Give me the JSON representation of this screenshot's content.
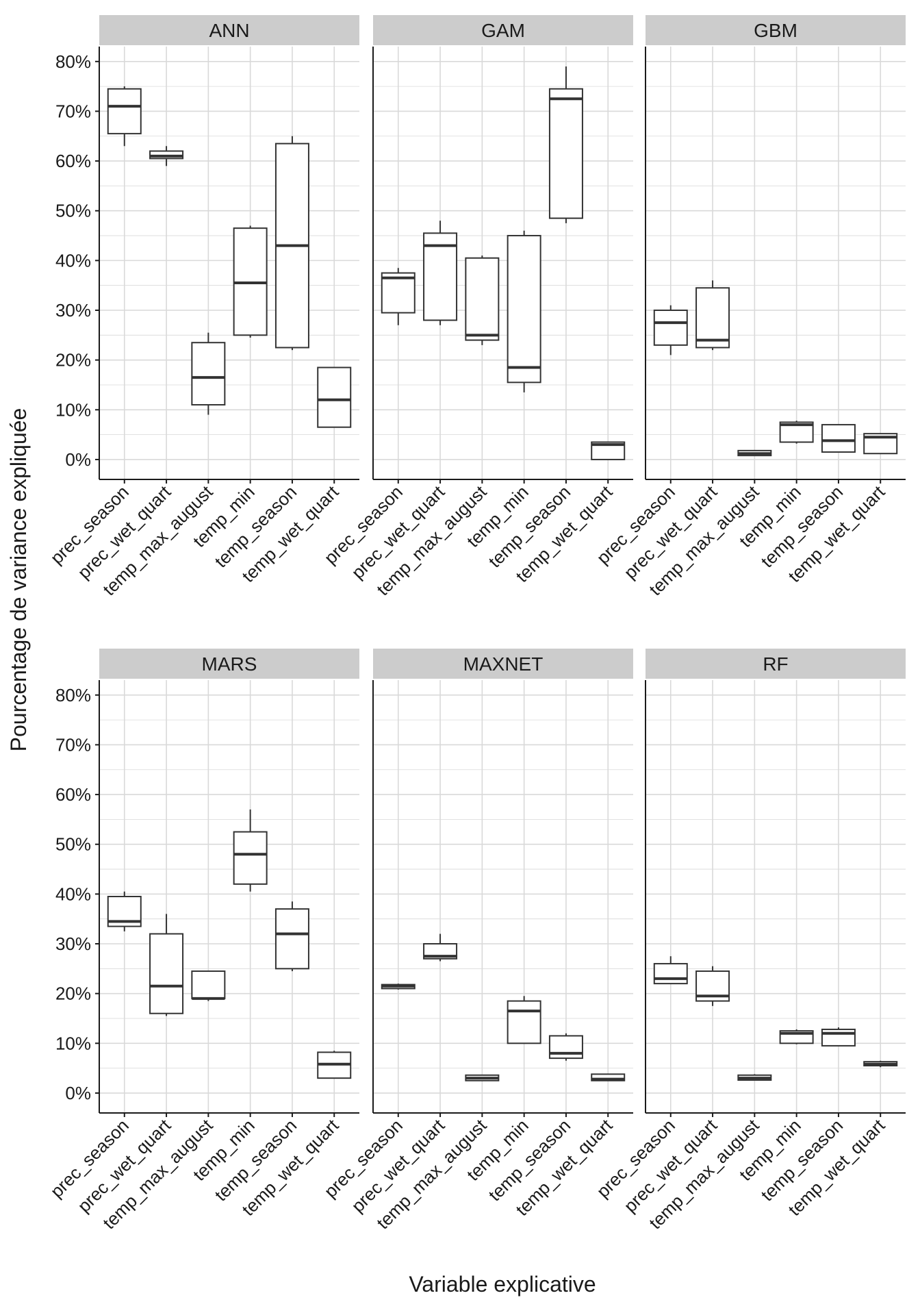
{
  "colors": {
    "strip_bg": "#cccccc",
    "grid": "#d9d9d9",
    "box_stroke": "#333333",
    "text": "#1a1a1a"
  },
  "chart_data": {
    "type": "boxplot",
    "title": "",
    "xlabel": "Variable explicative",
    "ylabel": "Pourcentage de variance expliquée",
    "ylim": [
      -4,
      83
    ],
    "yticks": [
      0,
      10,
      20,
      30,
      40,
      50,
      60,
      70,
      80
    ],
    "ytick_labels": [
      "0%",
      "10%",
      "20%",
      "30%",
      "40%",
      "50%",
      "60%",
      "70%",
      "80%"
    ],
    "grid": true,
    "categories": [
      "prec_season",
      "prec_wet_quart",
      "temp_max_august",
      "temp_min",
      "temp_season",
      "temp_wet_quart"
    ],
    "facets": [
      {
        "name": "ANN",
        "boxes": [
          {
            "min": 63,
            "q1": 65.5,
            "median": 71,
            "q3": 74.5,
            "max": 75
          },
          {
            "min": 59,
            "q1": 60.5,
            "median": 61,
            "q3": 62,
            "max": 63
          },
          {
            "min": 9,
            "q1": 11,
            "median": 16.5,
            "q3": 23.5,
            "max": 25.5
          },
          {
            "min": 24.5,
            "q1": 25,
            "median": 35.5,
            "q3": 46.5,
            "max": 47
          },
          {
            "min": 22,
            "q1": 22.5,
            "median": 43,
            "q3": 63.5,
            "max": 65
          },
          {
            "min": 6.5,
            "q1": 6.5,
            "median": 12,
            "q3": 18.5,
            "max": 18.5
          }
        ]
      },
      {
        "name": "GAM",
        "boxes": [
          {
            "min": 27,
            "q1": 29.5,
            "median": 36.5,
            "q3": 37.5,
            "max": 38.5
          },
          {
            "min": 27,
            "q1": 28,
            "median": 43,
            "q3": 45.5,
            "max": 48
          },
          {
            "min": 23,
            "q1": 24,
            "median": 25,
            "q3": 40.5,
            "max": 41
          },
          {
            "min": 13.5,
            "q1": 15.5,
            "median": 18.5,
            "q3": 45,
            "max": 46
          },
          {
            "min": 47.5,
            "q1": 48.5,
            "median": 72.5,
            "q3": 74.5,
            "max": 79
          },
          {
            "min": 0,
            "q1": 0,
            "median": 3,
            "q3": 3.5,
            "max": 3.5
          }
        ]
      },
      {
        "name": "GBM",
        "boxes": [
          {
            "min": 21,
            "q1": 23,
            "median": 27.5,
            "q3": 30,
            "max": 31
          },
          {
            "min": 22,
            "q1": 22.5,
            "median": 24,
            "q3": 34.5,
            "max": 36
          },
          {
            "min": 0.7,
            "q1": 0.8,
            "median": 1.2,
            "q3": 1.8,
            "max": 1.9
          },
          {
            "min": 3.2,
            "q1": 3.5,
            "median": 7,
            "q3": 7.5,
            "max": 7.8
          },
          {
            "min": 1.5,
            "q1": 1.5,
            "median": 3.8,
            "q3": 7,
            "max": 7
          },
          {
            "min": 1.2,
            "q1": 1.2,
            "median": 4.5,
            "q3": 5.2,
            "max": 5.2
          }
        ]
      },
      {
        "name": "MARS",
        "boxes": [
          {
            "min": 32.5,
            "q1": 33.5,
            "median": 34.5,
            "q3": 39.5,
            "max": 40.5
          },
          {
            "min": 15.5,
            "q1": 16,
            "median": 21.5,
            "q3": 32,
            "max": 36
          },
          {
            "min": 18.5,
            "q1": 19,
            "median": 19,
            "q3": 24.5,
            "max": 24.5
          },
          {
            "min": 40.5,
            "q1": 42,
            "median": 48,
            "q3": 52.5,
            "max": 57
          },
          {
            "min": 24.5,
            "q1": 25,
            "median": 32,
            "q3": 37,
            "max": 38.5
          },
          {
            "min": 3,
            "q1": 3,
            "median": 5.8,
            "q3": 8.2,
            "max": 8.5
          }
        ]
      },
      {
        "name": "MAXNET",
        "boxes": [
          {
            "min": 20.8,
            "q1": 21,
            "median": 21.5,
            "q3": 21.8,
            "max": 22
          },
          {
            "min": 26.5,
            "q1": 27,
            "median": 27.5,
            "q3": 30,
            "max": 32
          },
          {
            "min": 2.5,
            "q1": 2.5,
            "median": 3,
            "q3": 3.6,
            "max": 3.6
          },
          {
            "min": 10,
            "q1": 10,
            "median": 16.5,
            "q3": 18.5,
            "max": 19.5
          },
          {
            "min": 6.5,
            "q1": 7,
            "median": 8,
            "q3": 11.5,
            "max": 12
          },
          {
            "min": 2.4,
            "q1": 2.5,
            "median": 2.8,
            "q3": 3.8,
            "max": 3.8
          }
        ]
      },
      {
        "name": "RF",
        "boxes": [
          {
            "min": 22,
            "q1": 22,
            "median": 23,
            "q3": 26,
            "max": 27.5
          },
          {
            "min": 17.5,
            "q1": 18.5,
            "median": 19.5,
            "q3": 24.5,
            "max": 25.5
          },
          {
            "min": 2.5,
            "q1": 2.6,
            "median": 3,
            "q3": 3.6,
            "max": 3.8
          },
          {
            "min": 9.8,
            "q1": 10,
            "median": 12,
            "q3": 12.5,
            "max": 12.8
          },
          {
            "min": 9.5,
            "q1": 9.5,
            "median": 12,
            "q3": 12.8,
            "max": 13.2
          },
          {
            "min": 5.2,
            "q1": 5.5,
            "median": 5.8,
            "q3": 6.3,
            "max": 6.5
          }
        ]
      }
    ]
  }
}
